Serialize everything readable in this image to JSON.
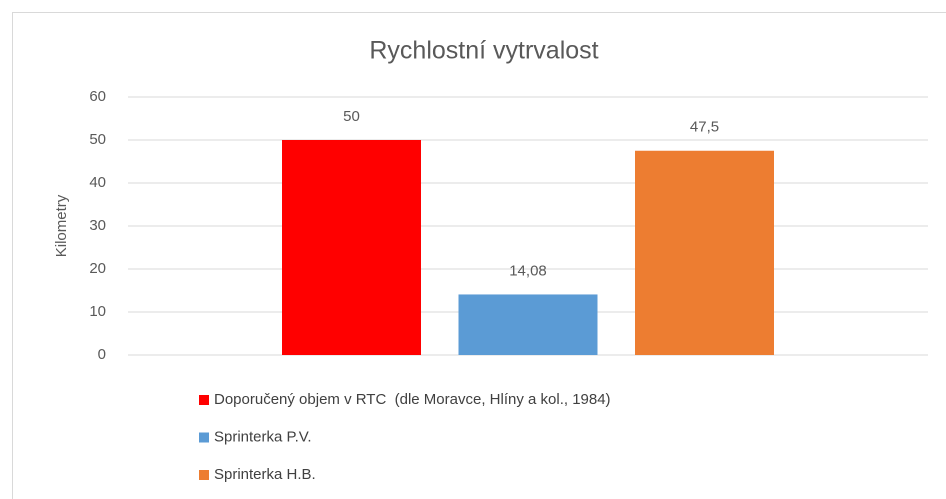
{
  "chart_data": {
    "type": "bar",
    "title": "Rychlostní vytrvalost",
    "y_label": "Kilometry",
    "categories": [
      null
    ],
    "series": [
      {
        "name": "Doporučený objem v RTC  (dle Moravce, Hlíny a kol., 1984)",
        "color": "#ff0000",
        "values": [
          50
        ],
        "value_labels": [
          "50"
        ]
      },
      {
        "name": "Sprinterka P.V.",
        "color": "#5b9bd5",
        "values": [
          14.08
        ],
        "value_labels": [
          "14,08"
        ]
      },
      {
        "name": "Sprinterka H.B.",
        "color": "#ed7d31",
        "values": [
          47.5
        ],
        "value_labels": [
          "47,5"
        ]
      }
    ],
    "ylim": [
      0,
      60
    ],
    "yticks": [
      0,
      10,
      20,
      30,
      40,
      50,
      60
    ],
    "grid": true,
    "legend": "bottom"
  }
}
